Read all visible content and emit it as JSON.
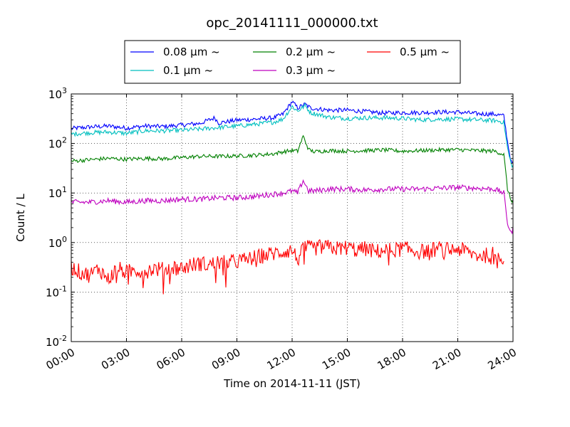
{
  "chart_data": {
    "type": "line",
    "title": "opc_20141111_000000.txt",
    "xlabel": "Time on 2014-11-11 (JST)",
    "ylabel": "Count / L",
    "x_unit": "hours",
    "xlim": [
      0,
      24
    ],
    "ylim": [
      0.01,
      1000
    ],
    "yscale": "log",
    "grid": true,
    "legend_position": "top-center",
    "x_ticks": [
      {
        "value": 0,
        "label": "00:00"
      },
      {
        "value": 3,
        "label": "03:00"
      },
      {
        "value": 6,
        "label": "06:00"
      },
      {
        "value": 9,
        "label": "09:00"
      },
      {
        "value": 12,
        "label": "12:00"
      },
      {
        "value": 15,
        "label": "15:00"
      },
      {
        "value": 18,
        "label": "18:00"
      },
      {
        "value": 21,
        "label": "21:00"
      },
      {
        "value": 24,
        "label": "24:00"
      }
    ],
    "y_ticks": [
      {
        "value": 0.01,
        "base": "10",
        "exp": "-2"
      },
      {
        "value": 0.1,
        "base": "10",
        "exp": "-1"
      },
      {
        "value": 1,
        "base": "10",
        "exp": "0"
      },
      {
        "value": 10,
        "base": "10",
        "exp": "1"
      },
      {
        "value": 100,
        "base": "10",
        "exp": "2"
      },
      {
        "value": 1000,
        "base": "10",
        "exp": "3"
      }
    ],
    "series": [
      {
        "name": "0.08 μm ~",
        "color": "#0000ff",
        "x": [
          0,
          1,
          2,
          3,
          4,
          5,
          6,
          7,
          7.8,
          8,
          9,
          10,
          11,
          11.5,
          12,
          12.3,
          12.7,
          13,
          14,
          15,
          16,
          17,
          18,
          19,
          20,
          21,
          22,
          23,
          23.5,
          23.7,
          23.9,
          24
        ],
        "y": [
          200,
          215,
          225,
          205,
          225,
          220,
          235,
          255,
          330,
          260,
          295,
          310,
          330,
          390,
          700,
          520,
          620,
          520,
          470,
          470,
          440,
          410,
          420,
          420,
          430,
          430,
          400,
          390,
          360,
          110,
          42,
          40
        ]
      },
      {
        "name": "0.1 μm ~",
        "color": "#00bfbf",
        "x": [
          0,
          1,
          2,
          3,
          4,
          5,
          6,
          7,
          8,
          9,
          10,
          11,
          11.5,
          12,
          12.3,
          12.7,
          13,
          14,
          15,
          16,
          17,
          18,
          19,
          20,
          21,
          22,
          23,
          23.5,
          23.7,
          23.9,
          24
        ],
        "y": [
          155,
          165,
          170,
          160,
          180,
          180,
          185,
          195,
          210,
          225,
          245,
          270,
          310,
          560,
          450,
          580,
          420,
          340,
          320,
          330,
          330,
          320,
          300,
          310,
          310,
          300,
          290,
          270,
          80,
          38,
          35
        ]
      },
      {
        "name": "0.2 μm ~",
        "color": "#008000",
        "x": [
          0,
          1,
          2,
          3,
          4,
          5,
          6,
          7,
          8,
          9,
          10,
          11,
          11.5,
          12,
          12.3,
          12.6,
          12.9,
          13.2,
          14,
          15,
          16,
          17,
          18,
          19,
          20,
          21,
          22,
          23,
          23.5,
          23.7,
          23.9,
          24
        ],
        "y": [
          44,
          47,
          50,
          48,
          50,
          49,
          52,
          55,
          55,
          56,
          58,
          62,
          68,
          72,
          70,
          140,
          75,
          68,
          72,
          70,
          72,
          74,
          70,
          72,
          74,
          75,
          72,
          70,
          60,
          12,
          7,
          7
        ]
      },
      {
        "name": "0.3 μm ~",
        "color": "#bf00bf",
        "x": [
          0,
          1,
          2,
          3,
          4,
          5,
          6,
          7,
          8,
          9,
          10,
          11,
          11.5,
          12,
          12.3,
          12.6,
          12.9,
          13.2,
          14,
          15,
          16,
          17,
          18,
          19,
          20,
          21,
          22,
          23,
          23.5,
          23.7,
          23.9,
          24
        ],
        "y": [
          6.5,
          6.5,
          7,
          6.5,
          7,
          7,
          7.5,
          7.5,
          8,
          8,
          8.5,
          9.5,
          10,
          11,
          10,
          18,
          11,
          11,
          12,
          12,
          11.5,
          12,
          12,
          12,
          12.5,
          13,
          12.5,
          12,
          10,
          2.5,
          1.5,
          2
        ]
      },
      {
        "name": "0.5 μm ~",
        "color": "#ff0000",
        "x": [
          0,
          0.5,
          1,
          1.5,
          2,
          2.5,
          3,
          3.5,
          4,
          4.5,
          5,
          5.5,
          6,
          6.5,
          7,
          7.5,
          8,
          8.5,
          9,
          9.5,
          10,
          10.5,
          11,
          11.5,
          12,
          12.3,
          12.7,
          13,
          13.5,
          14,
          14.5,
          15,
          15.5,
          16,
          16.5,
          17,
          17.5,
          18,
          18.5,
          19,
          19.5,
          20,
          20.5,
          21,
          21.5,
          22,
          22.5,
          23,
          23.5
        ],
        "y": [
          0.32,
          0.25,
          0.22,
          0.3,
          0.18,
          0.3,
          0.25,
          0.28,
          0.26,
          0.3,
          0.28,
          0.32,
          0.3,
          0.35,
          0.38,
          0.35,
          0.4,
          0.38,
          0.42,
          0.45,
          0.5,
          0.55,
          0.6,
          0.65,
          0.7,
          0.45,
          0.8,
          0.75,
          0.8,
          0.8,
          0.75,
          0.8,
          0.7,
          0.75,
          0.65,
          0.7,
          0.7,
          0.75,
          0.7,
          0.65,
          0.7,
          0.75,
          0.7,
          0.75,
          0.65,
          0.55,
          0.55,
          0.6,
          0.5
        ]
      }
    ]
  }
}
